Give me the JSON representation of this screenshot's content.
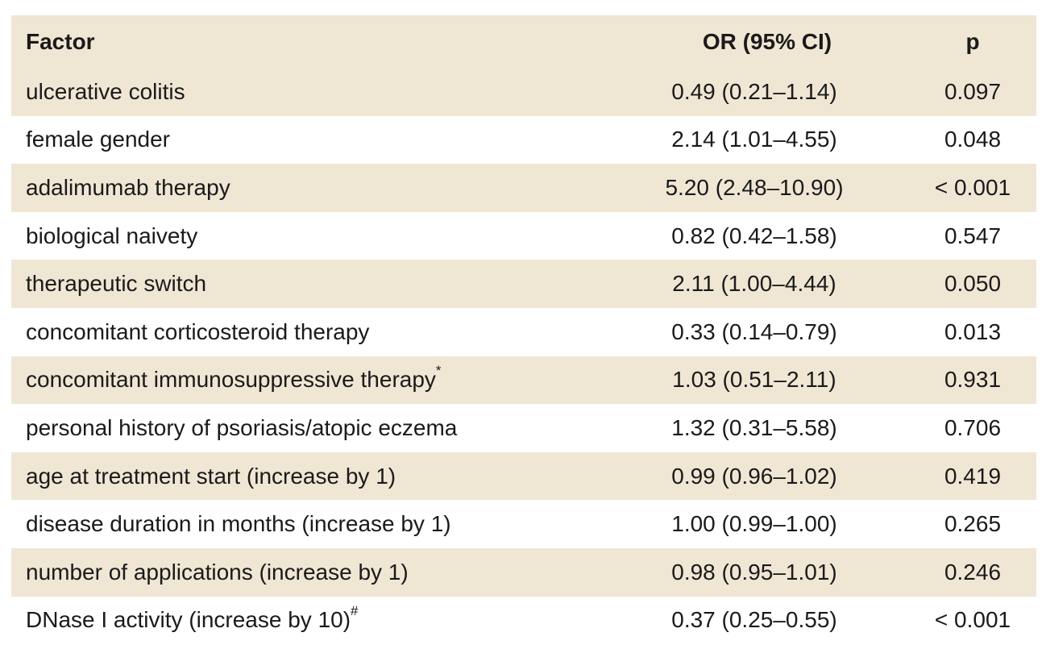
{
  "table": {
    "headers": {
      "factor": "Factor",
      "or": "OR (95% CI)",
      "p": "p"
    },
    "rows": [
      {
        "factor": "ulcerative colitis",
        "mark": "",
        "or": "0.49 (0.21–1.14)",
        "p": "0.097"
      },
      {
        "factor": "female gender",
        "mark": "",
        "or": "2.14 (1.01–4.55)",
        "p": "0.048"
      },
      {
        "factor": "adalimumab therapy",
        "mark": "",
        "or": "5.20 (2.48–10.90)",
        "p": "< 0.001"
      },
      {
        "factor": "biological naivety",
        "mark": "",
        "or": "0.82 (0.42–1.58)",
        "p": "0.547"
      },
      {
        "factor": "therapeutic switch",
        "mark": "",
        "or": "2.11 (1.00–4.44)",
        "p": "0.050"
      },
      {
        "factor": "concomitant corticosteroid therapy",
        "mark": "",
        "or": "0.33 (0.14–0.79)",
        "p": "0.013"
      },
      {
        "factor": "concomitant immunosuppressive therapy",
        "mark": "*",
        "or": "1.03 (0.51–2.11)",
        "p": "0.931"
      },
      {
        "factor": "personal history of psoriasis/atopic eczema",
        "mark": "",
        "or": "1.32 (0.31–5.58)",
        "p": "0.706"
      },
      {
        "factor": "age at treatment start (increase by 1)",
        "mark": "",
        "or": "0.99 (0.96–1.02)",
        "p": "0.419"
      },
      {
        "factor": "disease duration in months (increase by 1)",
        "mark": "",
        "or": "1.00 (0.99–1.00)",
        "p": "0.265"
      },
      {
        "factor": "number of applications (increase by 1)",
        "mark": "",
        "or": "0.98 (0.95–1.01)",
        "p": "0.246"
      },
      {
        "factor": "DNase I activity (increase by 10)",
        "mark": "#",
        "or": "0.37 (0.25–0.55)",
        "p": "< 0.001"
      }
    ]
  },
  "colors": {
    "stripe": "#efe6d4",
    "background": "#ffffff",
    "text": "#1a1a1a"
  }
}
